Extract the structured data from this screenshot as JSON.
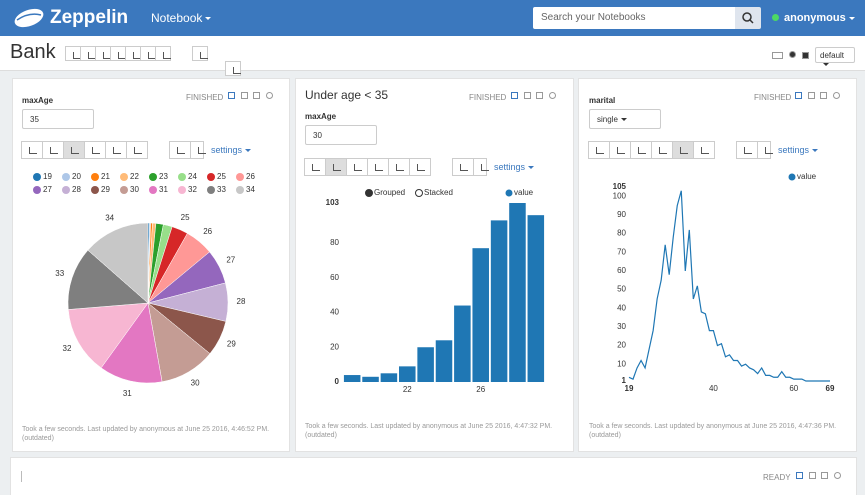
{
  "navbar": {
    "brand": "Zeppelin",
    "menu": "Notebook",
    "search_placeholder": "Search your Notebooks",
    "user": "anonymous"
  },
  "notebook": {
    "title": "Bank",
    "interpreter": "default"
  },
  "paragraphs": [
    {
      "status": "FINISHED",
      "form_label": "maxAge",
      "form_value": "35",
      "settings": "settings",
      "footer": "Took a few seconds. Last updated by anonymous at June 25 2016, 4:46:52 PM. (outdated)"
    },
    {
      "title": "Under age < 35",
      "status": "FINISHED",
      "form_label": "maxAge",
      "form_value": "30",
      "settings": "settings",
      "footer": "Took a few seconds. Last updated by anonymous at June 25 2016, 4:47:32 PM. (outdated)"
    },
    {
      "status": "FINISHED",
      "form_label": "marital",
      "form_value": "single",
      "settings": "settings",
      "footer": "Took a few seconds. Last updated by anonymous at June 25 2016, 4:47:36 PM. (outdated)"
    },
    {
      "status": "READY"
    }
  ],
  "chart_data": [
    {
      "type": "pie",
      "categories": [
        "19",
        "20",
        "21",
        "22",
        "23",
        "24",
        "25",
        "26",
        "27",
        "28",
        "29",
        "30",
        "31",
        "32",
        "33",
        "34"
      ],
      "values": [
        4,
        3,
        5,
        9,
        20,
        24,
        44,
        77,
        93,
        103,
        96,
        150,
        170,
        183,
        170,
        180
      ],
      "colors": [
        "#1f77b4",
        "#aec7e8",
        "#ff7f0e",
        "#ffbb78",
        "#2ca02c",
        "#98df8a",
        "#d62728",
        "#ff9896",
        "#9467bd",
        "#c5b0d5",
        "#8c564b",
        "#c49c94",
        "#e377c2",
        "#f7b6d2",
        "#7f7f7f",
        "#c7c7c7"
      ]
    },
    {
      "type": "bar",
      "legend_controls": [
        "Grouped",
        "Stacked"
      ],
      "x": [
        19,
        20,
        21,
        22,
        23,
        24,
        25,
        26,
        27,
        28,
        29
      ],
      "xticks": [
        22,
        26
      ],
      "series": [
        {
          "name": "value",
          "color": "#1f77b4",
          "values": [
            4,
            3,
            5,
            9,
            20,
            24,
            44,
            77,
            93,
            103,
            96
          ]
        }
      ],
      "ylim": [
        0,
        103
      ],
      "yticks": [
        0,
        20,
        40,
        60,
        80,
        103
      ]
    },
    {
      "type": "line",
      "x": [
        19,
        20,
        21,
        22,
        23,
        24,
        25,
        26,
        27,
        28,
        29,
        30,
        31,
        32,
        33,
        34,
        35,
        36,
        37,
        38,
        39,
        40,
        41,
        42,
        43,
        44,
        45,
        46,
        47,
        48,
        49,
        50,
        51,
        52,
        53,
        54,
        55,
        56,
        57,
        58,
        59,
        60,
        61,
        62,
        63,
        64,
        65,
        66,
        67,
        68,
        69
      ],
      "series": [
        {
          "name": "value",
          "color": "#1f77b4",
          "values": [
            3,
            2,
            8,
            12,
            8,
            18,
            28,
            45,
            55,
            74,
            58,
            78,
            95,
            103,
            60,
            82,
            45,
            52,
            38,
            37,
            28,
            28,
            20,
            21,
            14,
            15,
            12,
            12,
            9,
            10,
            8,
            7,
            5,
            8,
            4,
            4,
            3,
            3,
            6,
            3,
            3,
            2,
            2,
            2,
            1,
            1,
            1,
            1,
            1,
            1,
            1
          ]
        }
      ],
      "xlim": [
        19,
        69
      ],
      "xticks": [
        19,
        40,
        60,
        69
      ],
      "ylim": [
        1,
        105
      ],
      "yticks": [
        1,
        10,
        20,
        30,
        40,
        50,
        60,
        70,
        80,
        90,
        100,
        105
      ]
    }
  ]
}
